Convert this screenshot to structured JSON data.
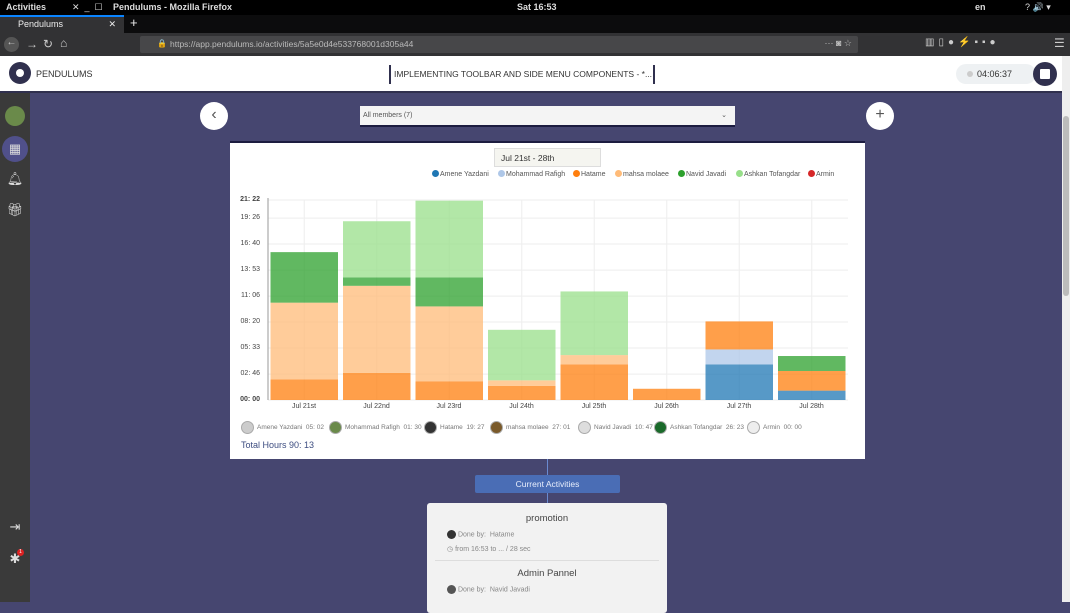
{
  "os": {
    "activities": "Activities",
    "window_title": "Pendulums - Mozilla Firefox",
    "clock": "Sat 16:53",
    "lang": "en"
  },
  "browser": {
    "tab_title": "Pendulums",
    "url": "https://app.pendulums.io/activities/5a5e0d4e533768001d305a44"
  },
  "app": {
    "brand": "PENDULUMS",
    "project_title": "IMPLEMENTING TOOLBAR AND SIDE MENU COMPONENTS - *...",
    "timer": "04:06:37"
  },
  "filter": {
    "members_select": "All members (7)",
    "date_range": "Jul 21st - 28th"
  },
  "chart_data": {
    "type": "bar",
    "stacked": true,
    "grid": true,
    "legend_placement": "top-right",
    "categories": [
      "Jul 21st",
      "Jul 22nd",
      "Jul 23rd",
      "Jul 24th",
      "Jul 25th",
      "Jul 26th",
      "Jul 27th",
      "Jul 28th"
    ],
    "ylim_hours": [
      0,
      21.37
    ],
    "y_ticks": [
      {
        "label": "00: 00",
        "hours": 0
      },
      {
        "label": "02: 46",
        "hours": 2.77
      },
      {
        "label": "05: 33",
        "hours": 5.55
      },
      {
        "label": "08: 20",
        "hours": 8.33
      },
      {
        "label": "11: 06",
        "hours": 11.1
      },
      {
        "label": "13: 53",
        "hours": 13.88
      },
      {
        "label": "16: 40",
        "hours": 16.67
      },
      {
        "label": "19: 26",
        "hours": 19.43
      },
      {
        "label": "21: 22",
        "hours": 21.37
      }
    ],
    "series": [
      {
        "name": "Amene Yazdani",
        "color": "#1f77b4",
        "values": [
          0,
          0,
          0,
          0,
          0,
          0,
          3.8,
          1.0
        ]
      },
      {
        "name": "Mohammad Rafigh",
        "color": "#aec7e8",
        "values": [
          0,
          0,
          0,
          0,
          0,
          0,
          1.6,
          0
        ]
      },
      {
        "name": "Hatame",
        "color": "#ff7f0e",
        "values": [
          2.2,
          2.9,
          2.0,
          1.5,
          3.8,
          1.2,
          3.0,
          2.1
        ]
      },
      {
        "name": "mahsa molaee",
        "color": "#ffbb78",
        "values": [
          8.2,
          9.3,
          8.0,
          0.6,
          1.0,
          0,
          0,
          0
        ]
      },
      {
        "name": "Navid Javadi",
        "color": "#2ca02c",
        "values": [
          5.4,
          0.9,
          3.1,
          0,
          0,
          0,
          0,
          1.6
        ]
      },
      {
        "name": "Ashkan Tofangdar",
        "color": "#98df8a",
        "values": [
          0,
          6.0,
          8.2,
          5.4,
          6.8,
          0,
          0,
          0
        ]
      },
      {
        "name": "Armin",
        "color": "#d62728",
        "values": [
          0,
          0,
          0,
          0,
          0,
          0,
          0,
          0
        ]
      }
    ]
  },
  "member_totals": [
    {
      "name": "Amene Yazdani",
      "time": "05: 02"
    },
    {
      "name": "Mohammad Rafigh",
      "time": "01: 30"
    },
    {
      "name": "Hatame",
      "time": "19: 27"
    },
    {
      "name": "mahsa molaee",
      "time": "27: 01"
    },
    {
      "name": "Navid Javadi",
      "time": "10: 47"
    },
    {
      "name": "Ashkan Tofangdar",
      "time": "26: 23"
    },
    {
      "name": "Armin",
      "time": "00: 00"
    }
  ],
  "total_hours": "Total Hours 90: 13",
  "current_activities": {
    "button": "Current Activities",
    "items": [
      {
        "title": "promotion",
        "done_by_label": "Done by:",
        "done_by": "Hatame",
        "time": "from 16:53 to ... / 28 sec"
      },
      {
        "title": "Admin Pannel",
        "done_by_label": "Done by:",
        "done_by": "Navid Javadi"
      }
    ]
  },
  "sidebar": {
    "notification_badge": "1"
  }
}
